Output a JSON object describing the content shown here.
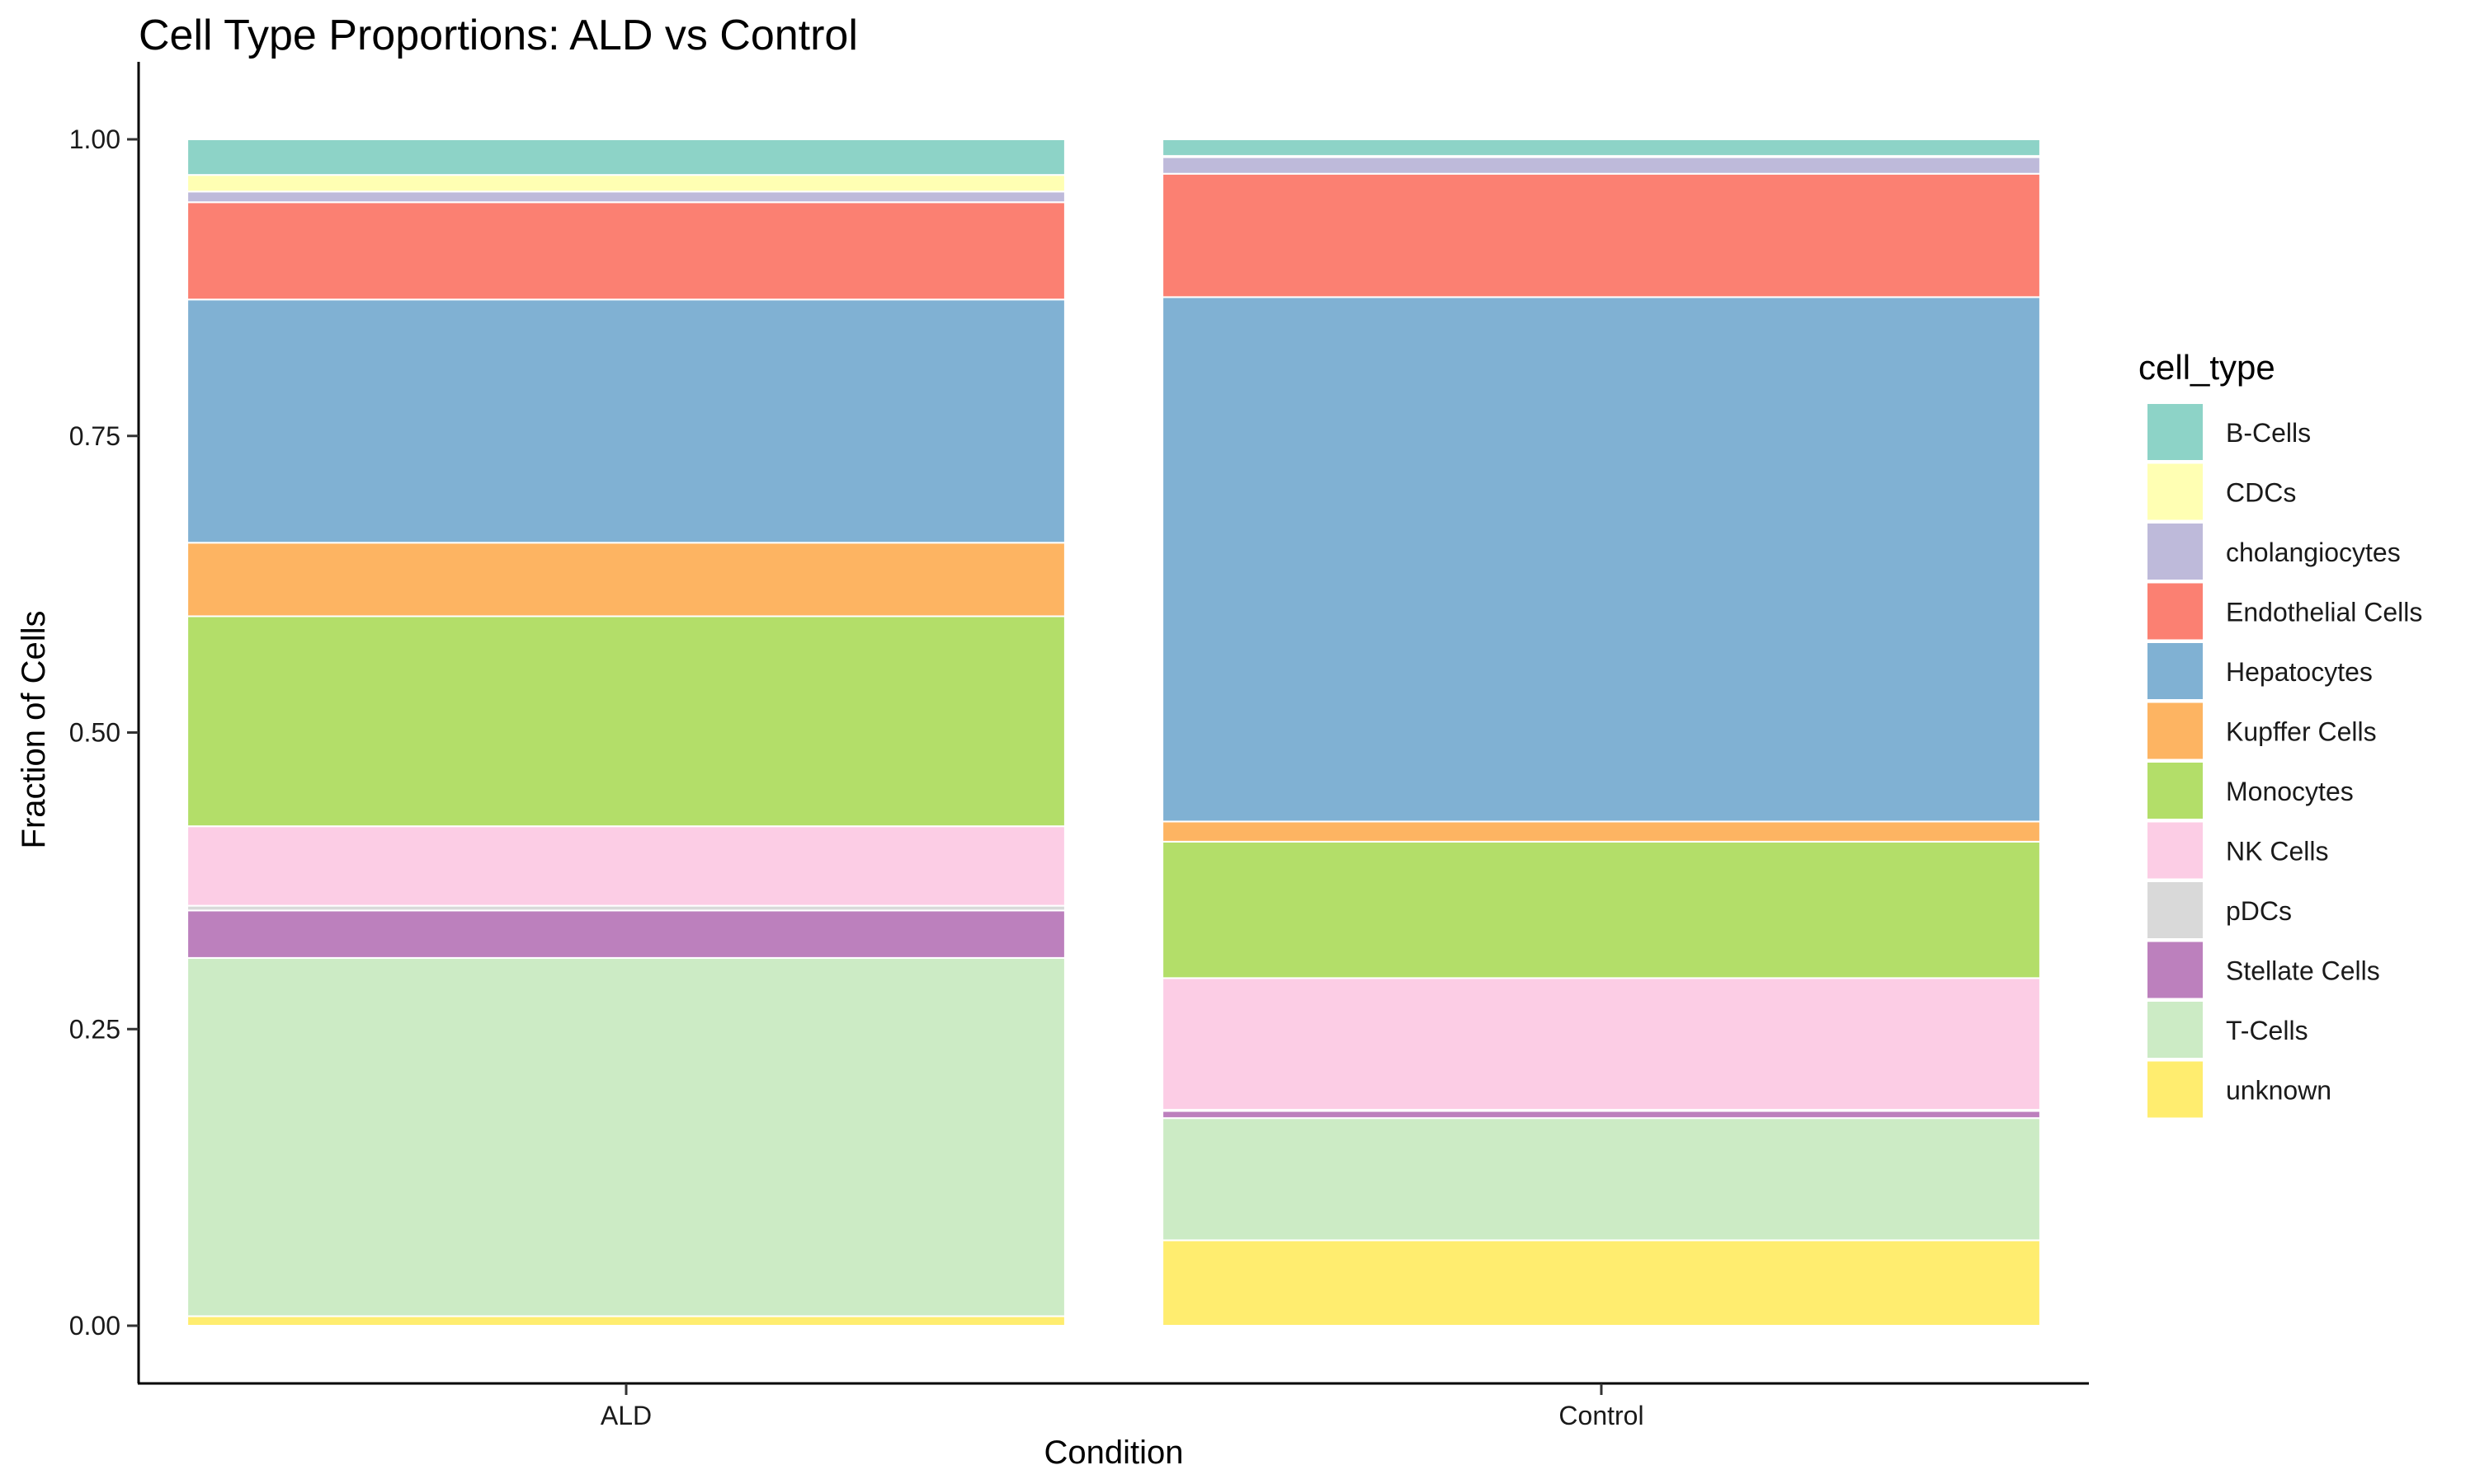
{
  "chart_data": {
    "type": "bar",
    "stacked": true,
    "title": "Cell Type Proportions: ALD vs Control",
    "xlabel": "Condition",
    "ylabel": "Fraction of Cells",
    "categories": [
      "ALD",
      "Control"
    ],
    "ylim": [
      0,
      1
    ],
    "yticks": [
      "0.00",
      "0.25",
      "0.50",
      "0.75",
      "1.00"
    ],
    "grid": false,
    "legend": {
      "title": "cell_type",
      "position": "right"
    },
    "series": [
      {
        "name": "unknown",
        "color": "#FFED6F",
        "values": [
          0.008,
          0.072
        ]
      },
      {
        "name": "T-Cells",
        "color": "#CCEBC5",
        "values": [
          0.302,
          0.103
        ]
      },
      {
        "name": "Stellate Cells",
        "color": "#BC80BD",
        "values": [
          0.04,
          0.006
        ]
      },
      {
        "name": "pDCs",
        "color": "#D9D9D9",
        "values": [
          0.004,
          0.001
        ]
      },
      {
        "name": "NK Cells",
        "color": "#FCCDE5",
        "values": [
          0.067,
          0.111
        ]
      },
      {
        "name": "Monocytes",
        "color": "#B3DE69",
        "values": [
          0.177,
          0.115
        ]
      },
      {
        "name": "Kupffer Cells",
        "color": "#FDB462",
        "values": [
          0.062,
          0.017
        ]
      },
      {
        "name": "Hepatocytes",
        "color": "#80B1D3",
        "values": [
          0.205,
          0.442
        ]
      },
      {
        "name": "Endothelial Cells",
        "color": "#FB8072",
        "values": [
          0.082,
          0.104
        ]
      },
      {
        "name": "cholangiocytes",
        "color": "#BEBADA",
        "values": [
          0.009,
          0.014
        ]
      },
      {
        "name": "CDCs",
        "color": "#FFFFB3",
        "values": [
          0.014,
          0.001
        ]
      },
      {
        "name": "B-Cells",
        "color": "#8DD3C7",
        "values": [
          0.03,
          0.014
        ]
      }
    ],
    "legend_order": [
      "B-Cells",
      "CDCs",
      "cholangiocytes",
      "Endothelial Cells",
      "Hepatocytes",
      "Kupffer Cells",
      "Monocytes",
      "NK Cells",
      "pDCs",
      "Stellate Cells",
      "T-Cells",
      "unknown"
    ]
  }
}
